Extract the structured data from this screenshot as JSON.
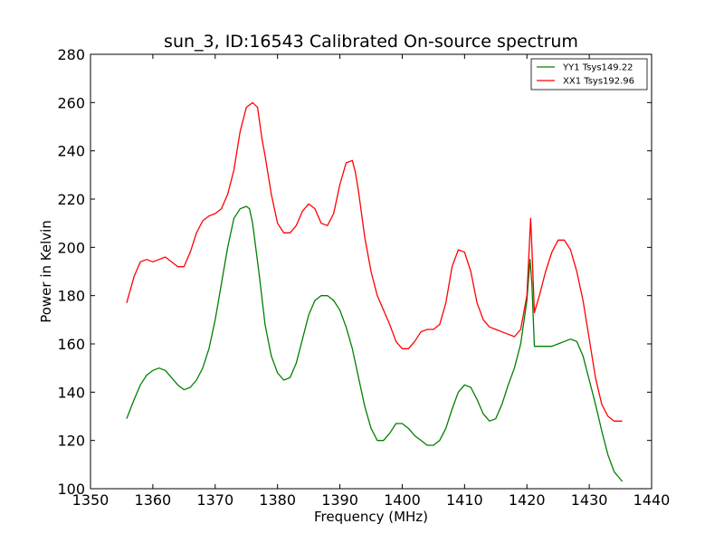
{
  "chart_data": {
    "type": "line",
    "title": "sun_3, ID:16543 Calibrated On-source spectrum",
    "xlabel": "Frequency (MHz)",
    "ylabel": "Power in Kelvin",
    "xlim": [
      1350,
      1440
    ],
    "ylim": [
      100,
      280
    ],
    "xticks": [
      1350,
      1360,
      1370,
      1380,
      1390,
      1400,
      1410,
      1420,
      1430,
      1440
    ],
    "yticks": [
      100,
      120,
      140,
      160,
      180,
      200,
      220,
      240,
      260,
      280
    ],
    "grid": false,
    "legend_position": "top-right",
    "series": [
      {
        "name": "YY1 Tsys149.22",
        "color": "#008000",
        "x": [
          1355.8,
          1357,
          1358,
          1359,
          1360,
          1361,
          1362,
          1363,
          1364,
          1365,
          1366,
          1367,
          1368,
          1369,
          1370,
          1371,
          1372,
          1373,
          1374,
          1375,
          1375.5,
          1376,
          1377,
          1378,
          1379,
          1380,
          1381,
          1382,
          1383,
          1384,
          1385,
          1386,
          1387,
          1388,
          1389,
          1390,
          1391,
          1392,
          1393,
          1394,
          1395,
          1396,
          1397,
          1398,
          1399,
          1400,
          1401,
          1402,
          1403,
          1404,
          1405,
          1406,
          1407,
          1408,
          1409,
          1410,
          1411,
          1412,
          1413,
          1414,
          1415,
          1416,
          1417,
          1418,
          1419,
          1420,
          1420.5,
          1420.8,
          1421.2,
          1422,
          1423,
          1424,
          1425,
          1426,
          1427,
          1428,
          1429,
          1430,
          1431,
          1432,
          1433,
          1434,
          1435.3
        ],
        "values": [
          129,
          137,
          143,
          147,
          149,
          150,
          149,
          146,
          143,
          141,
          142,
          145,
          150,
          158,
          170,
          185,
          200,
          212,
          216,
          217,
          216,
          210,
          190,
          168,
          155,
          148,
          145,
          146,
          152,
          162,
          172,
          178,
          180,
          180,
          178,
          174,
          167,
          158,
          146,
          134,
          125,
          120,
          120,
          123,
          127,
          127,
          125,
          122,
          120,
          118,
          118,
          120,
          125,
          133,
          140,
          143,
          142,
          137,
          131,
          128,
          129,
          135,
          143,
          150,
          160,
          178,
          195,
          185,
          159,
          159,
          159,
          159,
          160,
          161,
          162,
          161,
          155,
          145,
          135,
          124,
          114,
          107,
          103
        ]
      },
      {
        "name": "XX1 Tsys192.96",
        "color": "#ff0000",
        "x": [
          1355.8,
          1357,
          1358,
          1359,
          1360,
          1361,
          1362,
          1363,
          1364,
          1365,
          1366,
          1367,
          1368,
          1369,
          1370,
          1371,
          1372,
          1373,
          1374,
          1375,
          1376,
          1376.8,
          1377.5,
          1378,
          1379,
          1380,
          1381,
          1382,
          1383,
          1384,
          1385,
          1386,
          1387,
          1388,
          1389,
          1390,
          1391,
          1392,
          1392.5,
          1393,
          1394,
          1395,
          1396,
          1397,
          1398,
          1399,
          1400,
          1401,
          1402,
          1403,
          1404,
          1405,
          1406,
          1407,
          1408,
          1409,
          1410,
          1411,
          1412,
          1413,
          1414,
          1415,
          1416,
          1417,
          1418,
          1419,
          1420,
          1420.6,
          1420.8,
          1421.2,
          1422,
          1423,
          1424,
          1425,
          1426,
          1427,
          1428,
          1429,
          1430,
          1431,
          1432,
          1433,
          1434,
          1435.3
        ],
        "values": [
          177,
          188,
          194,
          195,
          194,
          195,
          196,
          194,
          192,
          192,
          198,
          206,
          211,
          213,
          214,
          216,
          222,
          232,
          248,
          258,
          260,
          258,
          245,
          238,
          222,
          210,
          206,
          206,
          209,
          215,
          218,
          216,
          210,
          209,
          214,
          226,
          235,
          236,
          231,
          223,
          204,
          190,
          180,
          174,
          168,
          161,
          158,
          158,
          161,
          165,
          166,
          166,
          168,
          177,
          192,
          199,
          198,
          190,
          177,
          170,
          167,
          166,
          165,
          164,
          163,
          166,
          180,
          212,
          200,
          173,
          180,
          190,
          198,
          203,
          203,
          199,
          190,
          178,
          162,
          146,
          135,
          130,
          128,
          128
        ]
      }
    ]
  }
}
